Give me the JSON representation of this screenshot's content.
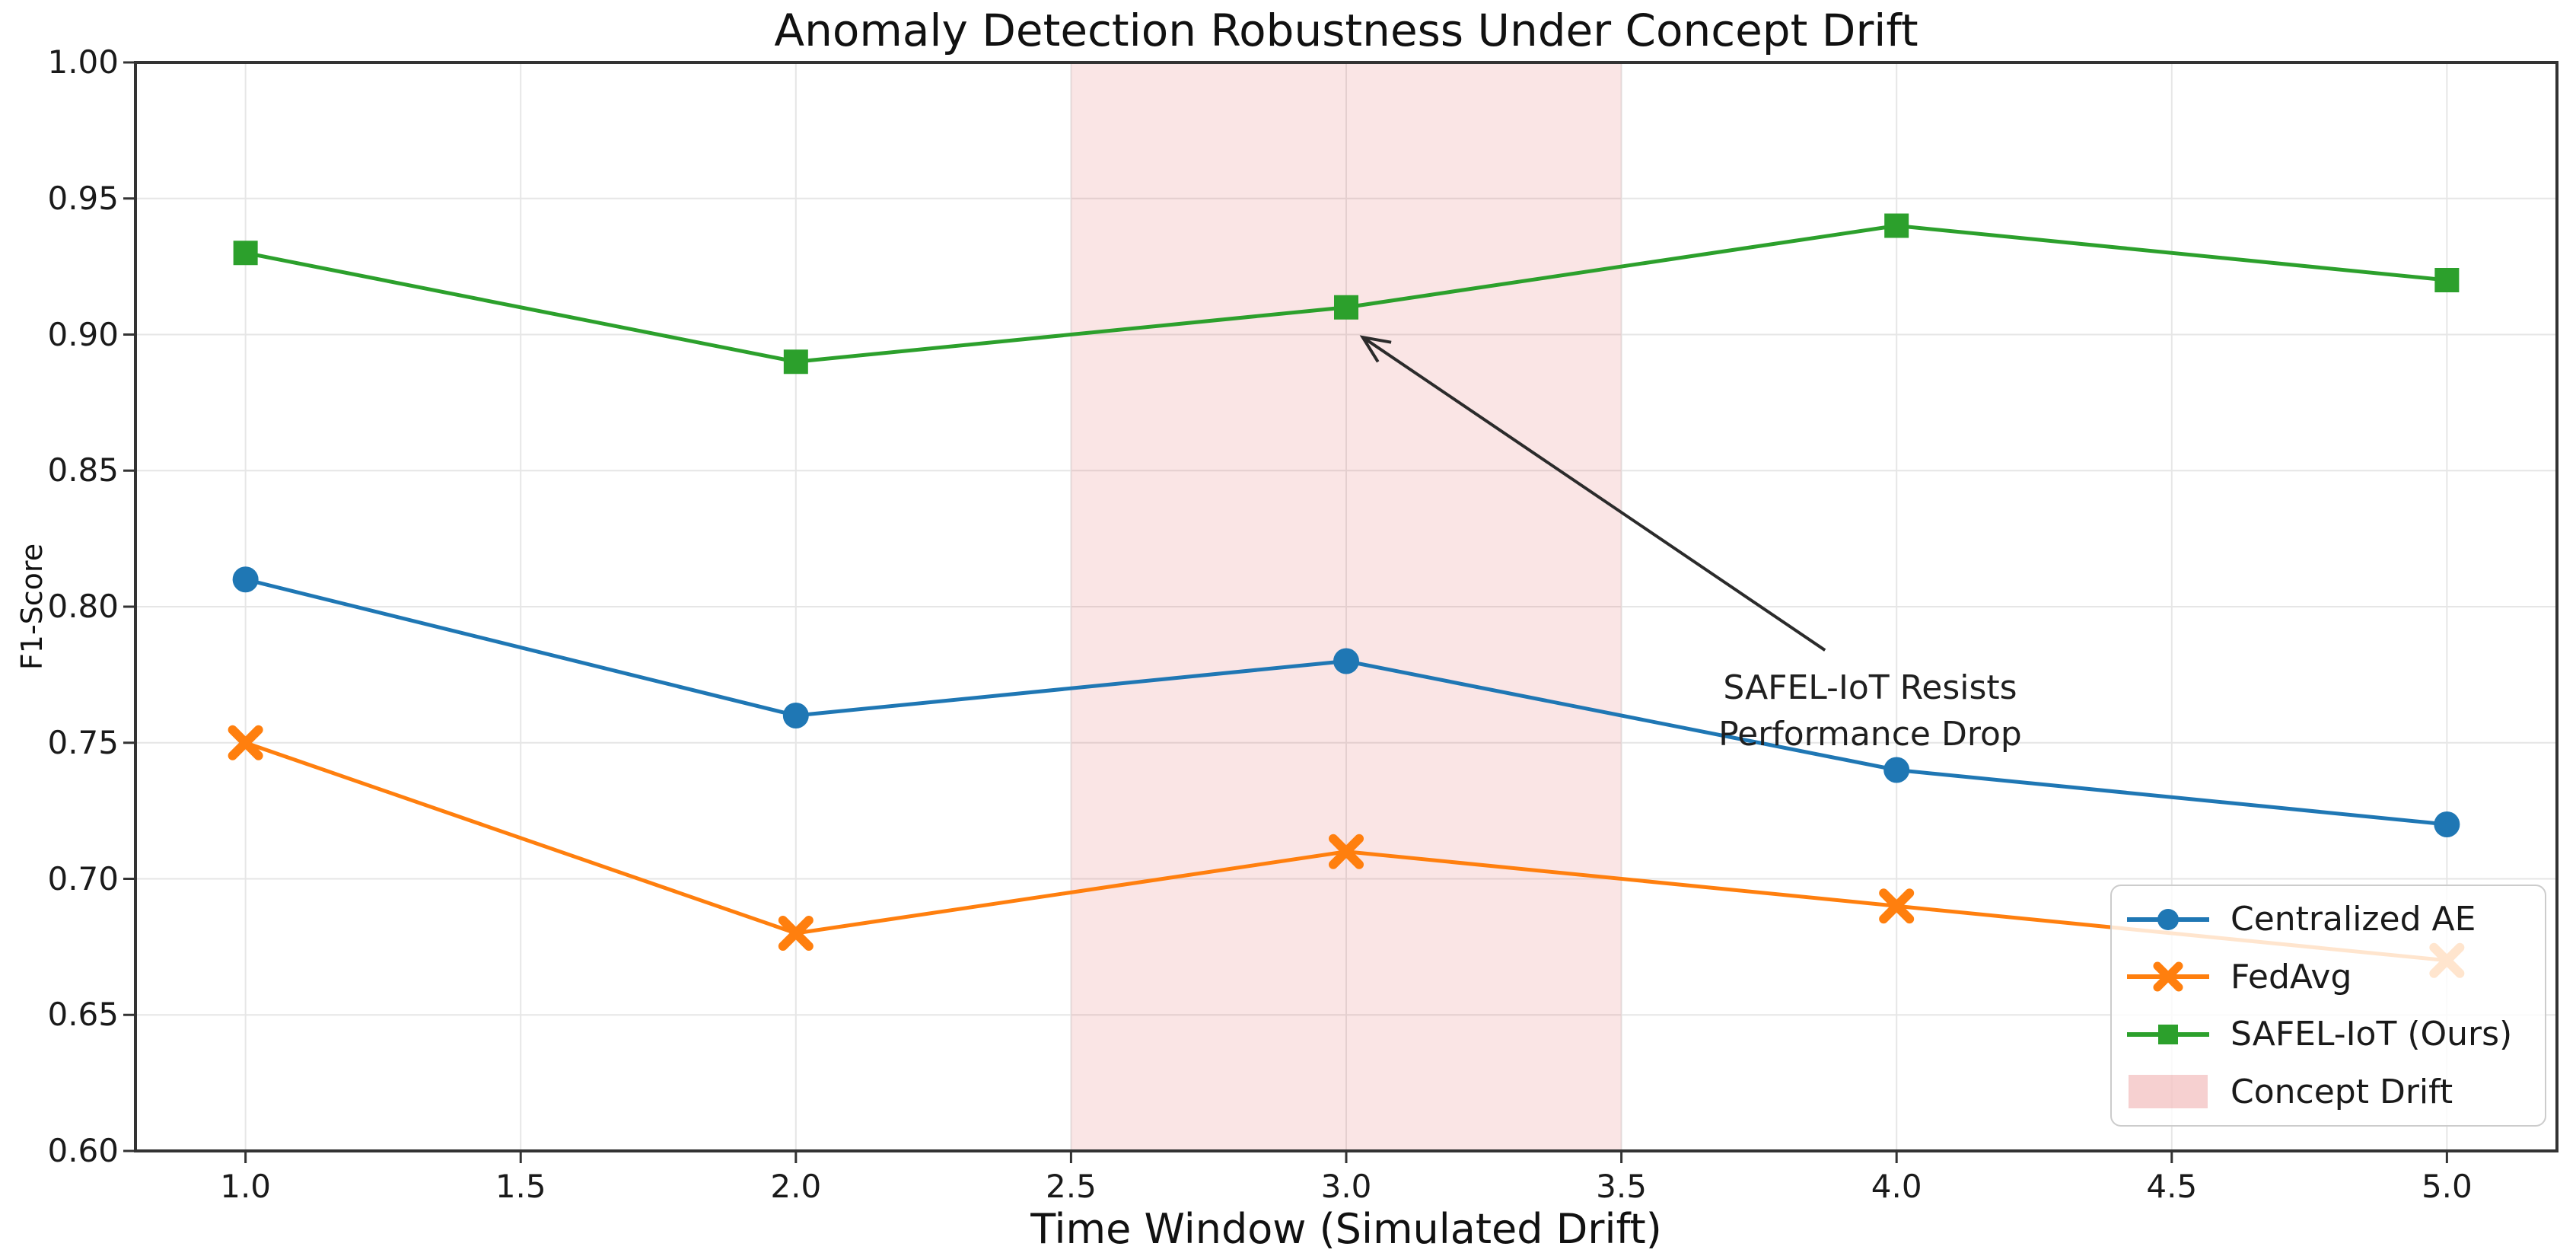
{
  "chart_data": {
    "type": "line",
    "title": "Anomaly Detection Robustness Under Concept Drift",
    "xlabel": "Time Window (Simulated Drift)",
    "ylabel": "F1-Score",
    "x": [
      1.0,
      2.0,
      3.0,
      4.0,
      5.0
    ],
    "xlim": [
      0.8,
      5.2
    ],
    "ylim": [
      0.6,
      1.0
    ],
    "x_tick_labels": [
      "1.0",
      "1.5",
      "2.0",
      "2.5",
      "3.0",
      "3.5",
      "4.0",
      "4.5",
      "5.0"
    ],
    "y_tick_labels": [
      "0.60",
      "0.65",
      "0.70",
      "0.75",
      "0.80",
      "0.85",
      "0.90",
      "0.95",
      "1.00"
    ],
    "grid": true,
    "grid_color": "#e6e6e6",
    "spine_color": "#333333",
    "series": [
      {
        "name": "Centralized AE",
        "color": "#1f77b4",
        "marker": "circle",
        "values": [
          0.81,
          0.76,
          0.78,
          0.74,
          0.72
        ]
      },
      {
        "name": "FedAvg",
        "color": "#ff7f0e",
        "marker": "x",
        "values": [
          0.75,
          0.68,
          0.71,
          0.69,
          0.67
        ]
      },
      {
        "name": "SAFEL-IoT (Ours)",
        "color": "#2ca02c",
        "marker": "square",
        "values": [
          0.93,
          0.89,
          0.91,
          0.94,
          0.92
        ]
      }
    ],
    "band": {
      "label": "Concept Drift",
      "x_from": 2.5,
      "x_to": 3.5,
      "fill": "rgba(214,39,40,0.12)",
      "legend_fill": "rgba(214,39,40,0.22)"
    },
    "legend_position": "lower right",
    "annotation": {
      "line1": "SAFEL-IoT Resists",
      "line2": "Performance Drop",
      "text_x": 3.952,
      "text_y": 0.7785,
      "arrow_from_x": 3.87,
      "arrow_from_y": 0.784,
      "arrow_to_x": 3.03,
      "arrow_to_y": 0.899,
      "arrow_color": "#2b2b2b"
    }
  }
}
